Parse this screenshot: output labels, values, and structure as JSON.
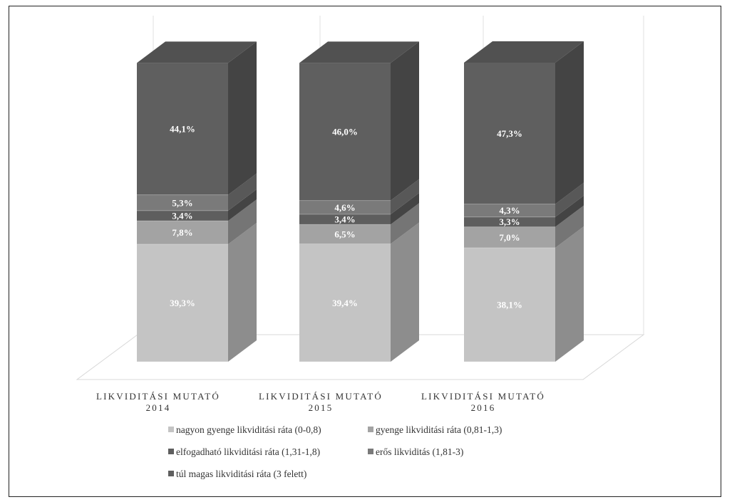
{
  "chart_data": {
    "type": "bar",
    "stacked": true,
    "percent": true,
    "three_d": true,
    "title": "",
    "categories": [
      [
        "LIKVIDITÁSI MUTATÓ",
        "2014"
      ],
      [
        "LIKVIDITÁSI MUTATÓ",
        "2015"
      ],
      [
        "LIKVIDITÁSI MUTATÓ",
        "2016"
      ]
    ],
    "series": [
      {
        "name": "nagyon gyenge likviditási ráta (0-0,8)",
        "values": [
          39.3,
          39.4,
          38.1
        ],
        "labels": [
          "39,3%",
          "39,4%",
          "38,1%"
        ],
        "color": "#c4c4c4"
      },
      {
        "name": "gyenge likviditási ráta (0,81-1,3)",
        "values": [
          7.8,
          6.5,
          7.0
        ],
        "labels": [
          "7,8%",
          "6,5%",
          "7,0%"
        ],
        "color": "#a3a3a3"
      },
      {
        "name": "elfogadható likviditási ráta (1,31-1,8)",
        "values": [
          3.4,
          3.4,
          3.3
        ],
        "labels": [
          "3,4%",
          "3,4%",
          "3,3%"
        ],
        "color": "#5e5e5e"
      },
      {
        "name": "erős likviditás (1,81-3)",
        "values": [
          5.3,
          4.6,
          4.3
        ],
        "labels": [
          "5,3%",
          "4,6%",
          "4,3%"
        ],
        "color": "#7a7a7a"
      },
      {
        "name": "túl magas likviditási ráta (3 felett)",
        "values": [
          44.1,
          46.0,
          47.3
        ],
        "labels": [
          "44,1%",
          "46,0%",
          "47,3%"
        ],
        "color": "#5f5f5f"
      }
    ],
    "ylim": [
      0,
      100
    ],
    "grid": true,
    "legend_position": "bottom"
  }
}
